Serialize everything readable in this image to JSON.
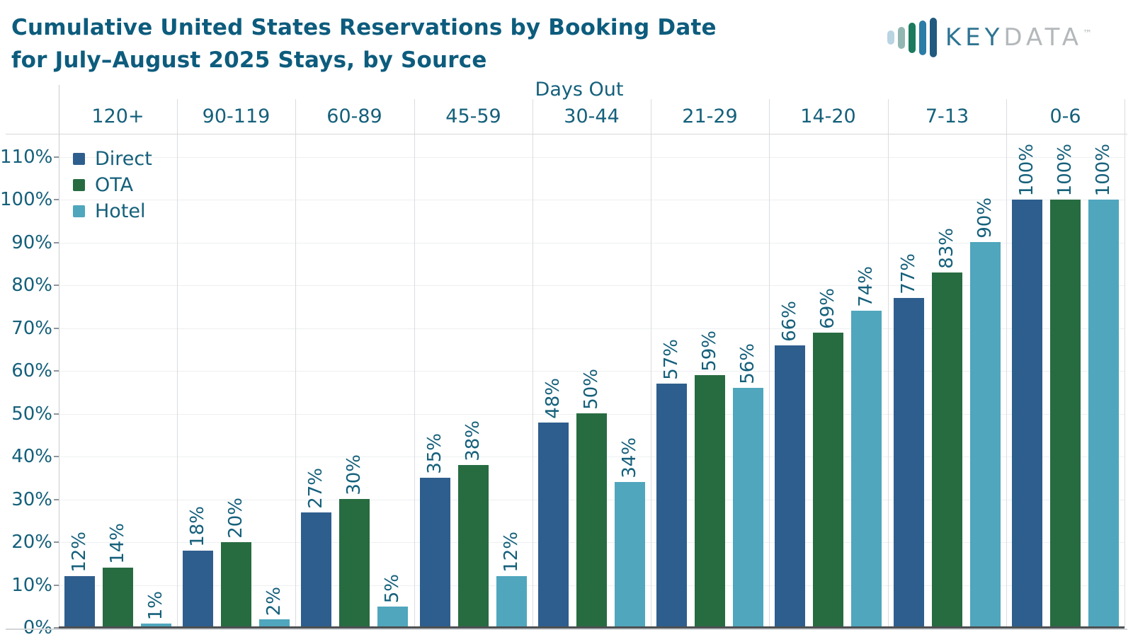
{
  "header": {
    "title_line1": "Cumulative United States Reservations by Booking Date",
    "title_line2": "for July–August 2025 Stays, by Source",
    "logo": {
      "text_primary": "KEY",
      "text_secondary": "DATA",
      "trademark": "™",
      "bar_colors": [
        "#b9d4e2",
        "#92b7b2",
        "#1c7a5e",
        "#2b7ca6",
        "#205a7f"
      ]
    }
  },
  "chart_data": {
    "type": "bar",
    "title": "Cumulative United States Reservations by Booking Date for July–August 2025 Stays, by Source",
    "x_axis_title": "Days Out",
    "categories": [
      "120+",
      "90-119",
      "60-89",
      "45-59",
      "30-44",
      "21-29",
      "14-20",
      "7-13",
      "0-6"
    ],
    "series": [
      {
        "name": "Direct",
        "color": "#2e5e8e",
        "values": [
          12,
          18,
          27,
          35,
          48,
          57,
          66,
          77,
          100
        ]
      },
      {
        "name": "OTA",
        "color": "#276c41",
        "values": [
          14,
          20,
          30,
          38,
          50,
          59,
          69,
          83,
          100
        ]
      },
      {
        "name": "Hotel",
        "color": "#4fa6bd",
        "values": [
          1,
          2,
          5,
          12,
          34,
          56,
          74,
          90,
          100
        ]
      }
    ],
    "value_suffix": "%",
    "y_axis": {
      "ticks": [
        "110%",
        "100%",
        "90%",
        "80%",
        "70%",
        "60%",
        "50%",
        "40%",
        "30%",
        "20%",
        "10%",
        "0%"
      ],
      "min": 0,
      "max": 115
    },
    "grid": true,
    "legend_position": "top-left-inside",
    "text_color": "#15607b",
    "title_color": "#0d5c7d"
  }
}
